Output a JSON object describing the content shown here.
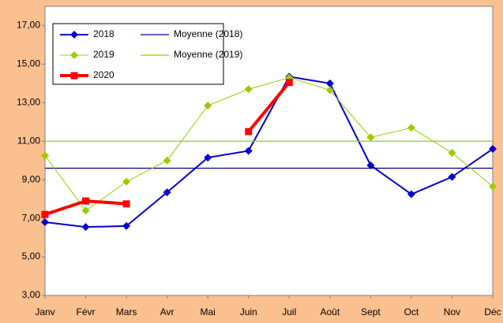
{
  "chart_data": {
    "type": "line",
    "categories": [
      "Janv",
      "Févr",
      "Mars",
      "Avr",
      "Mai",
      "Juin",
      "Juil",
      "Août",
      "Sept",
      "Oct",
      "Nov",
      "Déc"
    ],
    "series": [
      {
        "name": "2018",
        "color": "#0000cc",
        "marker": "diamond",
        "values": [
          6.8,
          6.55,
          6.6,
          8.35,
          10.15,
          10.5,
          14.35,
          14.0,
          9.75,
          8.25,
          9.15,
          10.6
        ]
      },
      {
        "name": "Moyenne (2018)",
        "color": "#000099",
        "value": 9.6
      },
      {
        "name": "2019",
        "color": "#99cc00",
        "marker": "diamond",
        "values": [
          10.25,
          7.4,
          8.9,
          10.0,
          12.85,
          13.7,
          14.3,
          13.65,
          11.2,
          11.7,
          10.4,
          8.65
        ]
      },
      {
        "name": "Moyenne (2019)",
        "color": "#99cc00",
        "value": 11.0
      },
      {
        "name": "2020",
        "color": "#ff0000",
        "marker": "square",
        "values": [
          7.2,
          7.9,
          7.75,
          null,
          null,
          11.5,
          14.05,
          null,
          null,
          null,
          null,
          null
        ]
      }
    ],
    "ylim": [
      3,
      18
    ],
    "yticks": [
      {
        "value": 3,
        "label": "3,00"
      },
      {
        "value": 5,
        "label": "5,00"
      },
      {
        "value": 7,
        "label": "7,00"
      },
      {
        "value": 9,
        "label": "9,00"
      },
      {
        "value": 11,
        "label": "11,00"
      },
      {
        "value": 13,
        "label": "13,00"
      },
      {
        "value": 15,
        "label": "15,00"
      },
      {
        "value": 17,
        "label": "17,00"
      }
    ],
    "grid": false,
    "legend": "upper left"
  }
}
